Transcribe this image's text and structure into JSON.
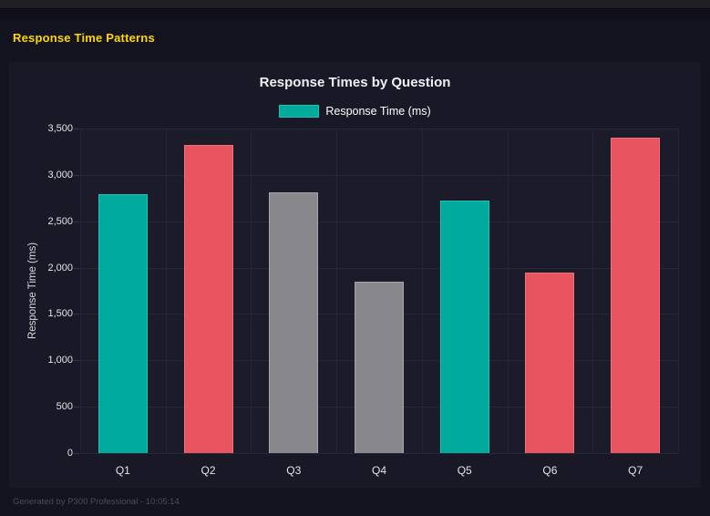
{
  "page": {
    "heading": "Response Time Patterns",
    "footer": "Generated by P300 Professional - 10:05:14"
  },
  "chart_data": {
    "type": "bar",
    "title": "Response Times by Question",
    "legend": [
      {
        "label": "Response Time (ms)",
        "color": "#00ab9e",
        "border": "#19c5b8"
      }
    ],
    "legend_position": "top",
    "categories": [
      "Q1",
      "Q2",
      "Q3",
      "Q4",
      "Q5",
      "Q6",
      "Q7"
    ],
    "values": [
      2790,
      3320,
      2810,
      1850,
      2720,
      1950,
      3400
    ],
    "bar_colors": [
      "#00ab9e",
      "#e8545f",
      "#87878c",
      "#87878c",
      "#00ab9e",
      "#e8545f",
      "#e8545f"
    ],
    "bar_border_colors": [
      "#1ac4b7",
      "#f2707a",
      "#a5a5aa",
      "#a5a5aa",
      "#1ac4b7",
      "#f2707a",
      "#f2707a"
    ],
    "xlabel": "",
    "ylabel": "Response Time (ms)",
    "ylim": [
      0,
      3500
    ],
    "ytick_step": 500,
    "ytick_labels": [
      "0",
      "500",
      "1,000",
      "1,500",
      "2,000",
      "2,500",
      "3,000",
      "3,500"
    ],
    "grid": true
  },
  "colors": {
    "page_background": "#141420",
    "panel_background": "#181826",
    "plot_background": "#1b1b29",
    "gridline": "#27273a",
    "heading_accent": "#ffd700",
    "text_primary": "#eef0f3",
    "text_muted": "#4a4a5e"
  }
}
